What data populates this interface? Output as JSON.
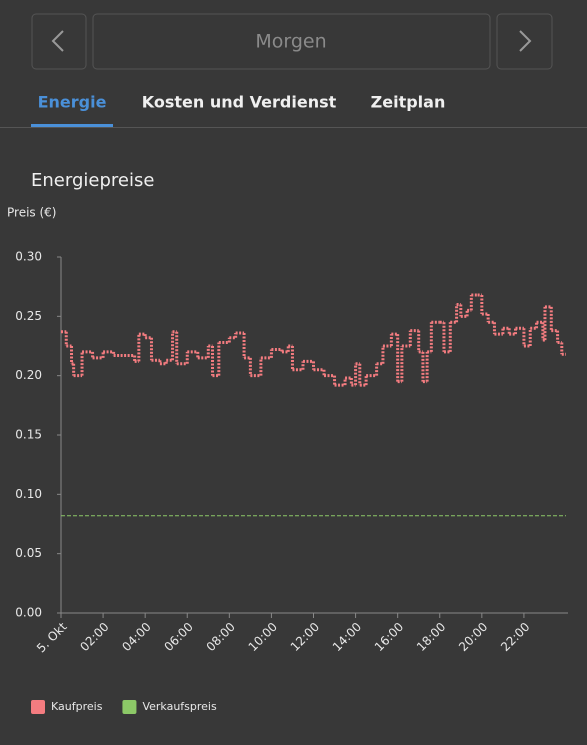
{
  "nav": {
    "label": "Morgen"
  },
  "tabs": [
    "Energie",
    "Kosten und Verdienst",
    "Zeitplan"
  ],
  "chart_data": {
    "type": "step",
    "title": "Energiepreise",
    "y_label": "Preis (€)",
    "xlim": [
      0,
      24
    ],
    "xticks": [
      {
        "value": 0,
        "label": "5. Okt"
      },
      {
        "value": 2,
        "label": "02:00"
      },
      {
        "value": 4,
        "label": "04:00"
      },
      {
        "value": 6,
        "label": "06:00"
      },
      {
        "value": 8,
        "label": "08:00"
      },
      {
        "value": 10,
        "label": "10:00"
      },
      {
        "value": 12,
        "label": "12:00"
      },
      {
        "value": 14,
        "label": "14:00"
      },
      {
        "value": 16,
        "label": "16:00"
      },
      {
        "value": 18,
        "label": "18:00"
      },
      {
        "value": 20,
        "label": "20:00"
      },
      {
        "value": 22,
        "label": "22:00"
      }
    ],
    "ylim": [
      0,
      0.3
    ],
    "yticks": [
      {
        "value": 0,
        "label": "0.00"
      },
      0.05,
      {
        "value": 0.1,
        "label": "0.10"
      },
      0.15,
      {
        "value": 0.2,
        "label": "0.20"
      },
      0.25,
      {
        "value": 0.3,
        "label": "0.30"
      }
    ],
    "series": [
      {
        "name": "Kaufpreis",
        "color": "#f47c80",
        "x": [
          0,
          0.25,
          0.5,
          0.6,
          1,
          1.5,
          2,
          2.5,
          3,
          3.5,
          3.7,
          4,
          4.3,
          4.7,
          5,
          5.3,
          5.5,
          6,
          6.5,
          7,
          7.2,
          7.5,
          8,
          8.3,
          8.7,
          9,
          9.5,
          10,
          10.5,
          10.8,
          11,
          11.5,
          12,
          12.5,
          13,
          13.5,
          13.8,
          14,
          14.2,
          14.5,
          15,
          15.3,
          15.7,
          16,
          16.2,
          16.6,
          17,
          17.2,
          17.4,
          17.6,
          18,
          18.2,
          18.5,
          18.8,
          19,
          19.3,
          19.5,
          19.8,
          20,
          20.3,
          20.6,
          21,
          21.3,
          21.6,
          22,
          22.3,
          22.6,
          22.9,
          23,
          23.3,
          23.6,
          23.8
        ],
        "values": [
          0.237,
          0.225,
          0.21,
          0.2,
          0.22,
          0.215,
          0.22,
          0.217,
          0.217,
          0.212,
          0.235,
          0.232,
          0.213,
          0.21,
          0.213,
          0.237,
          0.21,
          0.22,
          0.215,
          0.225,
          0.2,
          0.228,
          0.232,
          0.236,
          0.215,
          0.2,
          0.215,
          0.222,
          0.22,
          0.225,
          0.205,
          0.212,
          0.205,
          0.2,
          0.192,
          0.198,
          0.192,
          0.21,
          0.192,
          0.2,
          0.21,
          0.225,
          0.235,
          0.195,
          0.225,
          0.238,
          0.22,
          0.195,
          0.22,
          0.245,
          0.245,
          0.22,
          0.245,
          0.26,
          0.25,
          0.255,
          0.268,
          0.268,
          0.252,
          0.245,
          0.235,
          0.24,
          0.235,
          0.24,
          0.225,
          0.24,
          0.245,
          0.23,
          0.258,
          0.238,
          0.228,
          0.218
        ]
      },
      {
        "name": "Verkaufspreis",
        "color": "#8cc867",
        "x": [
          0,
          24
        ],
        "values": [
          0.082,
          0.082
        ]
      }
    ]
  }
}
